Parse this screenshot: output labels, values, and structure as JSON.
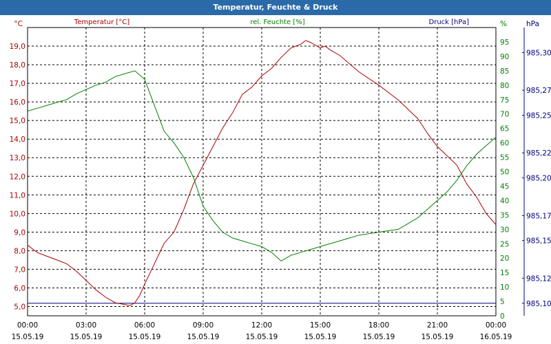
{
  "window": {
    "title": "Temperatur, Feuchte & Druck"
  },
  "chart_data": {
    "type": "line",
    "title": "Temperatur, Feuchte & Druck",
    "x": {
      "range": [
        "15.05.19 00:00",
        "16.05.19 00:00"
      ],
      "ticks": [
        {
          "time": "00:00",
          "date": "15.05.19"
        },
        {
          "time": "03:00",
          "date": "15.05.19"
        },
        {
          "time": "06:00",
          "date": "15.05.19"
        },
        {
          "time": "09:00",
          "date": "15.05.19"
        },
        {
          "time": "12:00",
          "date": "15.05.19"
        },
        {
          "time": "15:00",
          "date": "15.05.19"
        },
        {
          "time": "18:00",
          "date": "15.05.19"
        },
        {
          "time": "21:00",
          "date": "15.05.19"
        },
        {
          "time": "00:00",
          "date": "16.05.19"
        }
      ]
    },
    "axes": {
      "temperature": {
        "unit": "°C",
        "title": "Temperatur [°C]",
        "range": [
          4.5,
          20
        ],
        "ticks": [
          "5,0",
          "6,0",
          "7,0",
          "8,0",
          "9,0",
          "10,0",
          "11,0",
          "12,0",
          "13,0",
          "14,0",
          "15,0",
          "16,0",
          "17,0",
          "18,0",
          "19,0"
        ]
      },
      "humidity": {
        "unit": "%",
        "title": "rel. Feuchte [%]",
        "range": [
          0,
          100
        ],
        "ticks": [
          "0",
          "5",
          "10",
          "15",
          "20",
          "25",
          "30",
          "35",
          "40",
          "45",
          "50",
          "55",
          "60",
          "65",
          "70",
          "75",
          "80",
          "85",
          "90",
          "95"
        ]
      },
      "pressure": {
        "unit": "hPa",
        "title": "Druck [hPa]",
        "range": [
          985.09,
          985.32
        ],
        "ticks": [
          "985,10",
          "985,12",
          "985,15",
          "985,17",
          "985,20",
          "985,22",
          "985,25",
          "985,27",
          "985,30"
        ]
      }
    },
    "grid": true,
    "colors": {
      "temperature": "#aa0000",
      "humidity": "#008000",
      "pressure": "#000080",
      "titlebar": "#2b6aa8"
    },
    "series": [
      {
        "name": "Temperatur [°C]",
        "axis": "temperature",
        "hours": [
          0,
          0.5,
          1,
          1.5,
          2,
          2.5,
          3,
          3.5,
          4,
          4.5,
          5,
          5.25,
          5.5,
          5.75,
          6,
          6.5,
          7,
          7.5,
          8,
          8.5,
          9,
          9.5,
          10,
          10.5,
          11,
          11.5,
          12,
          12.5,
          13,
          13.5,
          14,
          14.25,
          14.5,
          15,
          15.25,
          15.5,
          16,
          17,
          18,
          19,
          20,
          20.5,
          21,
          21.5,
          22,
          22.5,
          23,
          23.5,
          24
        ],
        "values": [
          8.3,
          7.9,
          7.7,
          7.5,
          7.3,
          6.9,
          6.4,
          5.9,
          5.5,
          5.2,
          5.1,
          5.05,
          5.2,
          5.6,
          6.2,
          7.3,
          8.4,
          9.0,
          10.2,
          11.6,
          12.6,
          13.6,
          14.6,
          15.4,
          16.4,
          16.8,
          17.4,
          17.8,
          18.4,
          18.9,
          19.1,
          19.3,
          19.2,
          18.9,
          19.0,
          18.8,
          18.5,
          17.6,
          16.9,
          16.1,
          15.1,
          14.3,
          13.6,
          13.1,
          12.6,
          11.6,
          10.9,
          10.0,
          9.4
        ]
      },
      {
        "name": "rel. Feuchte [%]",
        "axis": "humidity",
        "hours": [
          0,
          0.5,
          1,
          1.5,
          2,
          2.5,
          3,
          3.5,
          4,
          4.5,
          5,
          5.5,
          6,
          6.5,
          7,
          7.5,
          8,
          8.5,
          9,
          9.5,
          10,
          10.5,
          11,
          11.5,
          12,
          12.5,
          13,
          13.5,
          14,
          14.5,
          15,
          16,
          17,
          18,
          19,
          19.5,
          20,
          20.5,
          21,
          21.5,
          22,
          22.5,
          23,
          23.5,
          24
        ],
        "values": [
          71,
          72,
          73,
          74,
          75,
          77,
          78.5,
          80,
          81,
          83,
          84,
          85,
          82,
          73,
          64,
          60,
          55,
          48,
          38,
          33,
          29,
          27,
          26,
          25,
          24,
          22,
          19,
          21,
          22,
          23,
          24,
          26,
          28,
          29,
          30,
          32,
          34,
          37,
          40,
          43,
          47,
          52,
          56,
          59,
          62
        ]
      }
    ],
    "pressure_line": {
      "name": "Druck [hPa]",
      "value": 985.1
    }
  }
}
